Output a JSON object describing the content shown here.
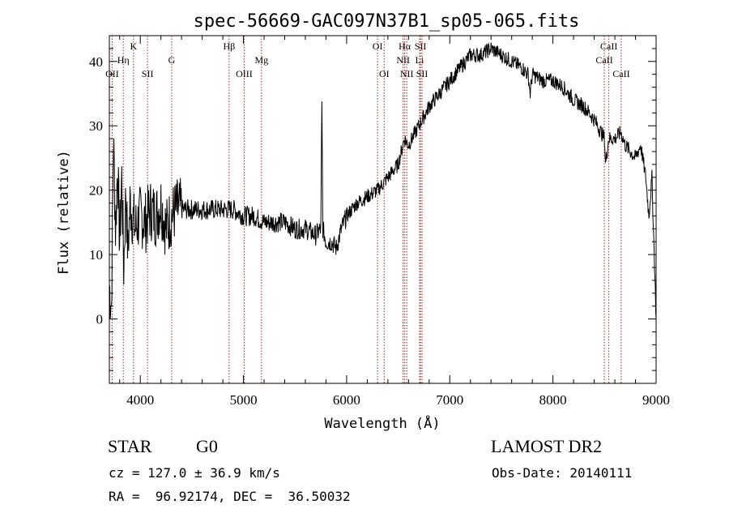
{
  "chart_data": {
    "type": "line",
    "title": "spec-56669-GAC097N37B1_sp05-065.fits",
    "xlabel": "Wavelength (Å)",
    "ylabel": "Flux (relative)",
    "xlim": [
      3700,
      9000
    ],
    "ylim": [
      -10,
      44
    ],
    "xticks": [
      4000,
      5000,
      6000,
      7000,
      8000,
      9000
    ],
    "yticks": [
      0,
      10,
      20,
      30,
      40
    ],
    "grid": false,
    "series": [
      {
        "x": [
          3700,
          3720,
          3740,
          3760,
          3780,
          3800,
          3820,
          3840,
          3860,
          3880,
          3900,
          3950,
          4000,
          4050,
          4100,
          4150,
          4200,
          4250,
          4300,
          4350,
          4400,
          4500,
          4600,
          4700,
          4800,
          4900,
          5000,
          5100,
          5200,
          5300,
          5400,
          5500,
          5600,
          5700,
          5750,
          5760,
          5770,
          5800,
          5850,
          5900,
          5950,
          6000,
          6100,
          6200,
          6300,
          6400,
          6500,
          6560,
          6600,
          6700,
          6800,
          6900,
          7000,
          7100,
          7200,
          7300,
          7400,
          7500,
          7600,
          7700,
          7760,
          7780,
          7800,
          7900,
          8000,
          8100,
          8200,
          8300,
          8400,
          8500,
          8510,
          8540,
          8600,
          8660,
          8700,
          8800,
          8850,
          8900,
          8930,
          8960,
          9000
        ],
        "y": [
          5,
          2,
          28,
          14,
          24,
          12,
          22,
          8,
          20,
          10,
          18,
          14,
          16,
          15,
          17,
          16,
          18,
          14,
          16,
          17,
          17,
          17,
          17,
          17,
          17,
          17,
          16,
          16,
          15,
          15,
          15,
          14,
          14,
          13,
          14,
          33,
          14,
          12,
          12,
          11,
          14,
          16,
          18,
          19,
          20,
          22,
          24,
          28,
          27,
          30,
          33,
          35,
          37,
          39,
          41,
          41,
          42,
          41,
          40,
          39,
          38,
          35,
          38,
          37,
          37,
          36,
          34,
          33,
          31,
          28,
          24,
          28,
          28,
          29,
          27,
          25,
          27,
          22,
          16,
          22,
          0
        ]
      }
    ],
    "lines": [
      {
        "label": "OII",
        "x": 3727,
        "row": 3
      },
      {
        "label": "Hη",
        "x": 3835,
        "row": 2
      },
      {
        "label": "K",
        "x": 3934,
        "row": 1
      },
      {
        "label": "SII",
        "x": 4070,
        "row": 3
      },
      {
        "label": "G",
        "x": 4304,
        "row": 2
      },
      {
        "label": "Hβ",
        "x": 4861,
        "row": 1
      },
      {
        "label": "OIII",
        "x": 5007,
        "row": 3
      },
      {
        "label": "Mg",
        "x": 5175,
        "row": 2
      },
      {
        "label": "OI",
        "x": 6300,
        "row": 1
      },
      {
        "label": "OI",
        "x": 6364,
        "row": 3
      },
      {
        "label": "Hα",
        "x": 6563,
        "row": 1
      },
      {
        "label": "NII",
        "x": 6548,
        "row": 2
      },
      {
        "label": "NII",
        "x": 6583,
        "row": 3
      },
      {
        "label": "Li",
        "x": 6707,
        "row": 2
      },
      {
        "label": "SII",
        "x": 6716,
        "row": 1
      },
      {
        "label": "SII",
        "x": 6731,
        "row": 3
      },
      {
        "label": "CaII",
        "x": 8498,
        "row": 2
      },
      {
        "label": "CaII",
        "x": 8542,
        "row": 1
      },
      {
        "label": "CaII",
        "x": 8662,
        "row": 3
      }
    ],
    "line_color": "#b22222",
    "spectrum_color": "#000000"
  },
  "info": {
    "class": "STAR",
    "subclass": "G0",
    "survey": "LAMOST DR2",
    "cz": "cz = 127.0 ± 36.9 km/s",
    "obs_date": "Obs-Date: 20140111",
    "radec": "RA =  96.92174, DEC =  36.50032"
  }
}
